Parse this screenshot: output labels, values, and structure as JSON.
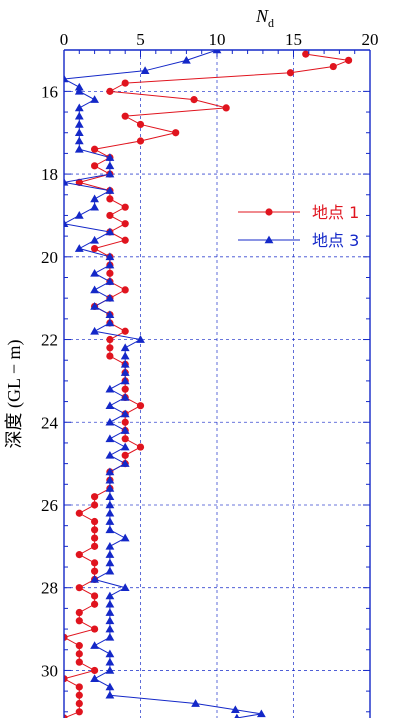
{
  "chart_data": {
    "type": "scatter",
    "xlabel": "N",
    "xlabel_sub": "d",
    "ylabel": "深度 (GL − m)",
    "xlim": [
      0,
      20
    ],
    "ylim": [
      15.0,
      31.15
    ],
    "y_inverted": true,
    "x_axis_position": "top",
    "x_ticks": [
      0,
      5,
      10,
      15,
      20
    ],
    "y_ticks": [
      16,
      18,
      20,
      22,
      24,
      26,
      28,
      30
    ],
    "x_tick_labels": [
      "0",
      "5",
      "10",
      "15",
      "20"
    ],
    "y_tick_labels": [
      "16",
      "18",
      "20",
      "22",
      "24",
      "26",
      "28",
      "30"
    ],
    "grid": true,
    "legend_position": "right-upper",
    "series": [
      {
        "name": "地点 1",
        "color": "#e0141e",
        "marker": "circle",
        "points": [
          [
            15.8,
            15.1
          ],
          [
            18.6,
            15.25
          ],
          [
            17.6,
            15.4
          ],
          [
            14.8,
            15.55
          ],
          [
            4,
            15.8
          ],
          [
            3,
            16.0
          ],
          [
            8.5,
            16.2
          ],
          [
            10.6,
            16.4
          ],
          [
            4,
            16.6
          ],
          [
            5,
            16.8
          ],
          [
            7.3,
            17.0
          ],
          [
            5,
            17.2
          ],
          [
            2,
            17.4
          ],
          [
            3,
            17.6
          ],
          [
            2,
            17.8
          ],
          [
            3,
            18.0
          ],
          [
            1,
            18.2
          ],
          [
            3,
            18.4
          ],
          [
            3,
            18.6
          ],
          [
            4,
            18.8
          ],
          [
            3,
            19.0
          ],
          [
            4,
            19.2
          ],
          [
            3,
            19.4
          ],
          [
            4,
            19.6
          ],
          [
            2,
            19.8
          ],
          [
            3,
            20.0
          ],
          [
            3,
            20.2
          ],
          [
            3,
            20.4
          ],
          [
            3,
            20.6
          ],
          [
            4,
            20.8
          ],
          [
            3,
            21.0
          ],
          [
            2,
            21.2
          ],
          [
            3,
            21.4
          ],
          [
            3,
            21.6
          ],
          [
            4,
            21.8
          ],
          [
            3,
            22.0
          ],
          [
            3,
            22.2
          ],
          [
            3,
            22.4
          ],
          [
            4,
            22.6
          ],
          [
            4,
            22.8
          ],
          [
            4,
            23.0
          ],
          [
            4,
            23.2
          ],
          [
            4,
            23.4
          ],
          [
            5,
            23.6
          ],
          [
            4,
            23.8
          ],
          [
            4,
            24.0
          ],
          [
            4,
            24.2
          ],
          [
            4,
            24.4
          ],
          [
            5,
            24.6
          ],
          [
            4,
            24.8
          ],
          [
            4,
            25.0
          ],
          [
            3,
            25.2
          ],
          [
            3,
            25.4
          ],
          [
            3,
            25.6
          ],
          [
            2,
            25.8
          ],
          [
            2,
            26.0
          ],
          [
            1,
            26.2
          ],
          [
            2,
            26.4
          ],
          [
            2,
            26.6
          ],
          [
            2,
            26.8
          ],
          [
            2,
            27.0
          ],
          [
            1,
            27.2
          ],
          [
            2,
            27.4
          ],
          [
            2,
            27.6
          ],
          [
            2,
            27.8
          ],
          [
            1,
            28.0
          ],
          [
            2,
            28.2
          ],
          [
            2,
            28.4
          ],
          [
            1,
            28.6
          ],
          [
            1,
            28.8
          ],
          [
            2,
            29.0
          ],
          [
            0,
            29.2
          ],
          [
            1,
            29.4
          ],
          [
            1,
            29.6
          ],
          [
            1,
            29.8
          ],
          [
            2,
            30.0
          ],
          [
            0,
            30.2
          ],
          [
            1,
            30.4
          ],
          [
            1,
            30.6
          ],
          [
            1,
            30.8
          ],
          [
            1,
            31.0
          ],
          [
            0,
            31.15
          ]
        ]
      },
      {
        "name": "地点 3",
        "color": "#1428c8",
        "marker": "triangle",
        "points": [
          [
            10,
            15.0
          ],
          [
            8,
            15.25
          ],
          [
            5.3,
            15.5
          ],
          [
            0,
            15.7
          ],
          [
            1,
            15.9
          ],
          [
            1,
            16.0
          ],
          [
            2,
            16.2
          ],
          [
            1,
            16.4
          ],
          [
            1,
            16.6
          ],
          [
            1,
            16.8
          ],
          [
            1,
            17.0
          ],
          [
            1,
            17.2
          ],
          [
            1,
            17.4
          ],
          [
            3,
            17.6
          ],
          [
            3,
            17.8
          ],
          [
            3,
            18.0
          ],
          [
            0,
            18.2
          ],
          [
            3,
            18.4
          ],
          [
            2,
            18.6
          ],
          [
            2,
            18.8
          ],
          [
            1,
            19.0
          ],
          [
            0,
            19.2
          ],
          [
            3,
            19.4
          ],
          [
            2,
            19.6
          ],
          [
            1,
            19.8
          ],
          [
            3,
            20.0
          ],
          [
            3,
            20.2
          ],
          [
            2,
            20.4
          ],
          [
            3,
            20.6
          ],
          [
            2,
            20.8
          ],
          [
            3,
            21.0
          ],
          [
            2,
            21.2
          ],
          [
            3,
            21.4
          ],
          [
            3,
            21.6
          ],
          [
            2,
            21.8
          ],
          [
            5,
            22.0
          ],
          [
            4,
            22.2
          ],
          [
            4,
            22.4
          ],
          [
            4,
            22.6
          ],
          [
            4,
            22.8
          ],
          [
            4,
            23.0
          ],
          [
            3,
            23.2
          ],
          [
            4,
            23.4
          ],
          [
            3,
            23.6
          ],
          [
            4,
            23.8
          ],
          [
            3,
            24.0
          ],
          [
            4,
            24.2
          ],
          [
            3,
            24.4
          ],
          [
            4,
            24.6
          ],
          [
            3,
            24.8
          ],
          [
            4,
            25.0
          ],
          [
            3,
            25.2
          ],
          [
            3,
            25.4
          ],
          [
            3,
            25.6
          ],
          [
            3,
            25.8
          ],
          [
            3,
            26.0
          ],
          [
            3,
            26.2
          ],
          [
            3,
            26.4
          ],
          [
            3,
            26.6
          ],
          [
            4,
            26.8
          ],
          [
            3,
            27.0
          ],
          [
            3,
            27.2
          ],
          [
            3,
            27.4
          ],
          [
            3,
            27.6
          ],
          [
            2,
            27.8
          ],
          [
            4,
            28.0
          ],
          [
            3,
            28.2
          ],
          [
            3,
            28.4
          ],
          [
            3,
            28.6
          ],
          [
            3,
            28.8
          ],
          [
            3,
            29.0
          ],
          [
            3,
            29.2
          ],
          [
            2,
            29.4
          ],
          [
            3,
            29.6
          ],
          [
            3,
            29.8
          ],
          [
            3,
            30.0
          ],
          [
            2,
            30.2
          ],
          [
            3,
            30.4
          ],
          [
            3,
            30.6
          ],
          [
            8.6,
            30.8
          ],
          [
            11.2,
            30.95
          ],
          [
            12.9,
            31.05
          ],
          [
            11.3,
            31.15
          ]
        ]
      }
    ]
  }
}
